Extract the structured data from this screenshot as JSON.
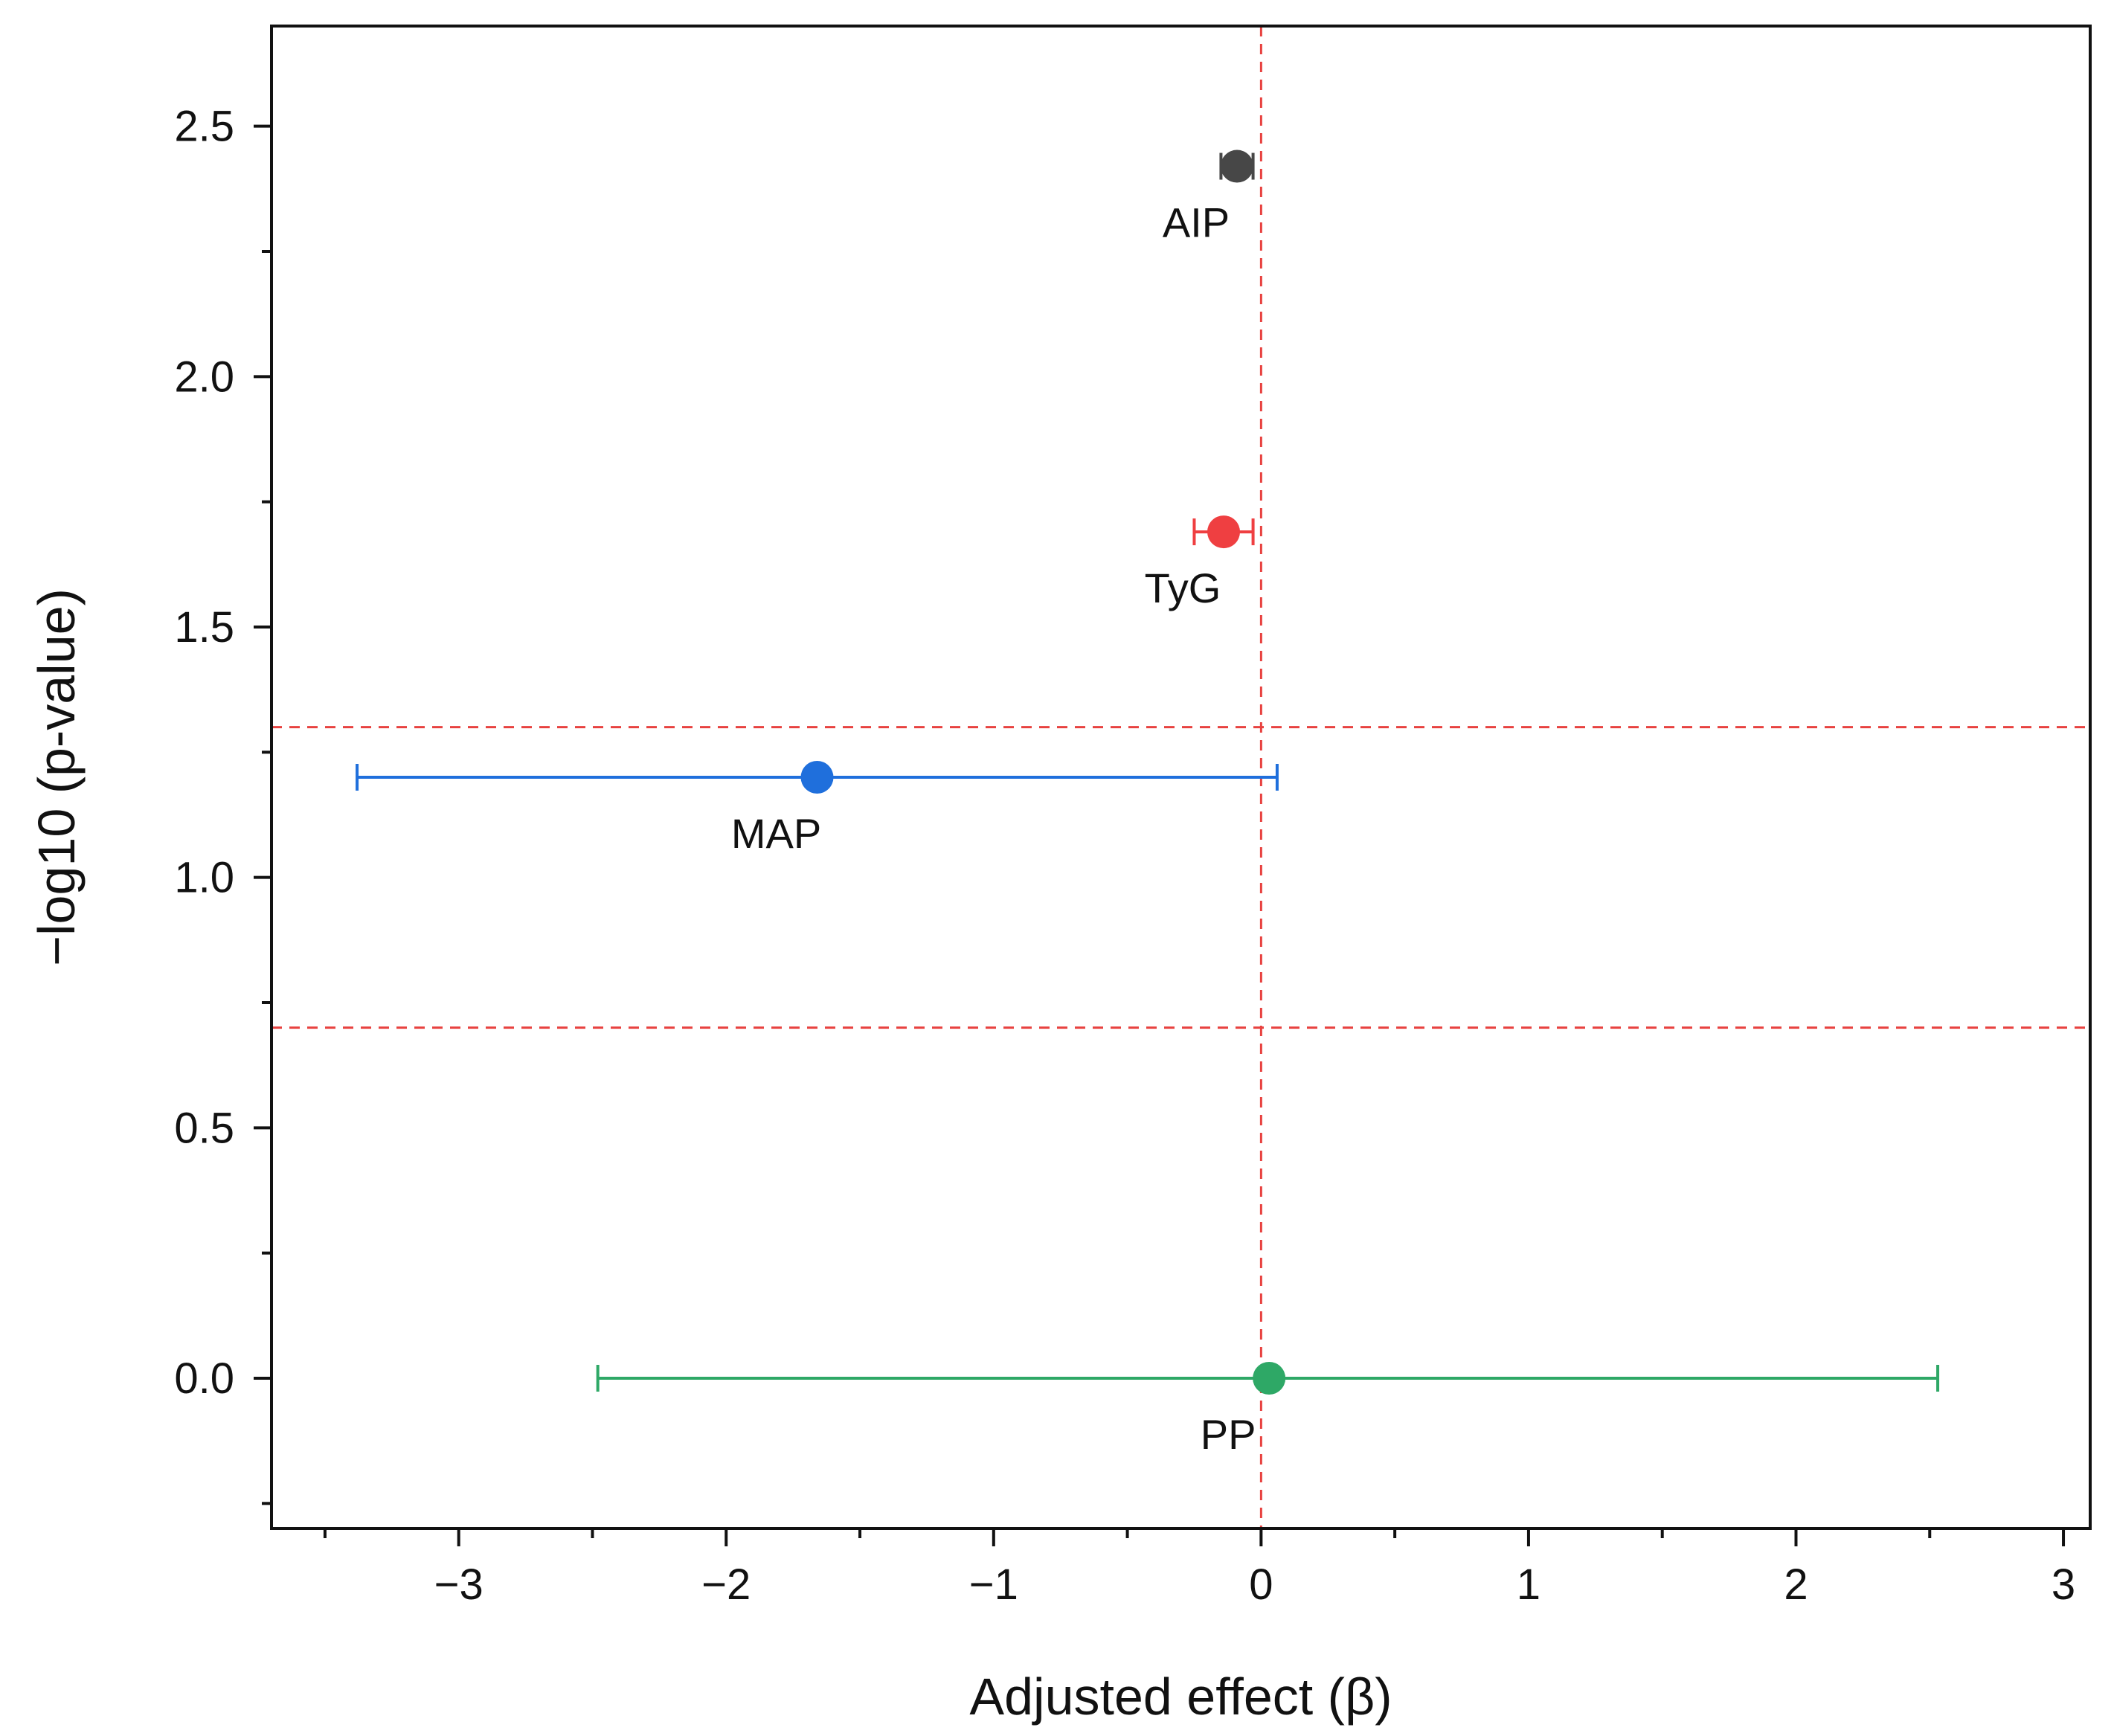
{
  "chart_data": {
    "type": "scatter",
    "title": "",
    "xlabel": "Adjusted effect (β)",
    "ylabel": "−log10 (p-value)",
    "xlim": [
      -3.7,
      3.1
    ],
    "ylim": [
      -0.3,
      2.7
    ],
    "x_ticks": [
      -3,
      -2,
      -1,
      0,
      1,
      2,
      3
    ],
    "x_tick_labels": [
      "−3",
      "−2",
      "−1",
      "0",
      "1",
      "2",
      "3"
    ],
    "y_ticks": [
      0.0,
      0.5,
      1.0,
      1.5,
      2.0,
      2.5
    ],
    "y_tick_labels": [
      "0.0",
      "0.5",
      "1.0",
      "1.5",
      "2.0",
      "2.5"
    ],
    "reference_lines": [
      {
        "orientation": "vertical",
        "value": 0,
        "color": "#e8413f",
        "style": "dashed"
      },
      {
        "orientation": "horizontal",
        "value": 1.3,
        "color": "#e8413f",
        "style": "dashed"
      },
      {
        "orientation": "horizontal",
        "value": 0.7,
        "color": "#e8413f",
        "style": "dashed"
      }
    ],
    "series": [
      {
        "name": "AIP",
        "x": -0.09,
        "y": 2.42,
        "ci_low": -0.15,
        "ci_high": -0.03,
        "color": "#474747"
      },
      {
        "name": "TyG",
        "x": -0.14,
        "y": 1.69,
        "ci_low": -0.25,
        "ci_high": -0.03,
        "color": "#ef3f41"
      },
      {
        "name": "MAP",
        "x": -1.66,
        "y": 1.2,
        "ci_low": -3.38,
        "ci_high": 0.06,
        "color": "#1f6fdc"
      },
      {
        "name": "PP",
        "x": 0.03,
        "y": 0.0,
        "ci_low": -2.48,
        "ci_high": 2.53,
        "color": "#2ea866"
      }
    ]
  }
}
